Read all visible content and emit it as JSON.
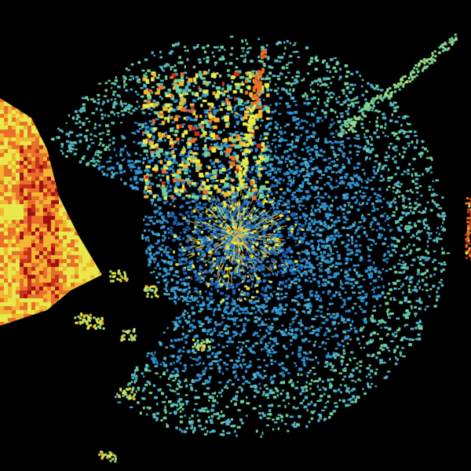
{
  "view": {
    "type": "weather-radar-reflectivity",
    "background": "#000000",
    "palette": [
      "#1f5fb4",
      "#2f8fd0",
      "#4fb3c8",
      "#6fcf9f",
      "#a8e07a",
      "#e8e84a",
      "#f2b531",
      "#e8702a",
      "#c8301e",
      "#a01010"
    ]
  }
}
